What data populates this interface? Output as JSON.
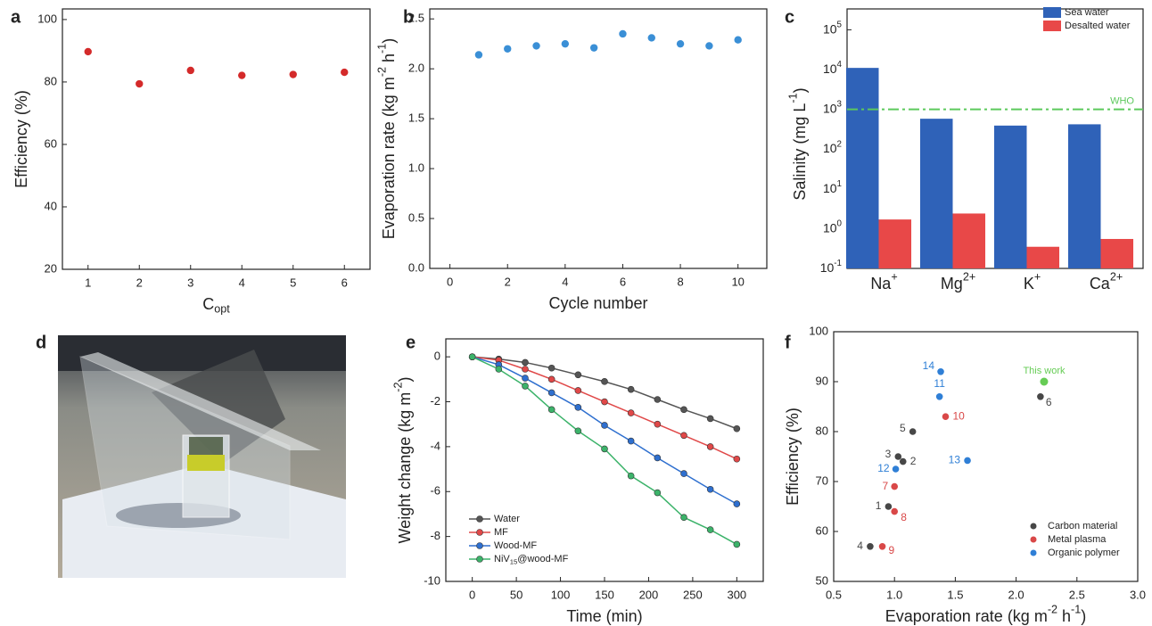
{
  "chart_data": [
    {
      "type": "scatter",
      "panel": "a",
      "xlabel": [
        "C",
        {
          "sub": "opt"
        }
      ],
      "ylabel": "Efficiency (%)",
      "x": [
        1,
        2,
        3,
        4,
        5,
        6
      ],
      "values": [
        89.7,
        79.4,
        83.7,
        82.1,
        82.4,
        83.1
      ],
      "color": "#d42a2a",
      "xlim": [
        0.5,
        6.5
      ],
      "ylim": [
        20,
        103.4
      ],
      "xticks": [
        1,
        2,
        3,
        4,
        5,
        6
      ],
      "yticks": [
        20,
        40,
        60,
        80,
        100
      ]
    },
    {
      "type": "scatter",
      "panel": "b",
      "xlabel": "Cycle number",
      "ylabel": [
        "Evaporation rate (kg m",
        {
          "sup": "-2"
        },
        " h",
        {
          "sup": "-1"
        },
        ")"
      ],
      "x": [
        1,
        2,
        3,
        4,
        5,
        6,
        7,
        8,
        9,
        10
      ],
      "values": [
        2.14,
        2.2,
        2.23,
        2.25,
        2.21,
        2.35,
        2.31,
        2.25,
        2.23,
        2.29
      ],
      "color": "#3a8fd6",
      "xlim": [
        -0.7,
        11
      ],
      "ylim": [
        0,
        2.6
      ],
      "xticks": [
        0,
        2,
        4,
        6,
        8,
        10
      ],
      "yticks": [
        {
          "value": 0,
          "label": "0.0"
        },
        0.5,
        {
          "value": 1,
          "label": "1.0"
        },
        1.5,
        {
          "value": 2,
          "label": "2.0"
        },
        2.5
      ]
    },
    {
      "type": "bar",
      "panel": "c",
      "log_y": true,
      "ylabel": [
        "Salinity (mg L",
        {
          "sup": "-1"
        },
        ")"
      ],
      "categories": [
        [
          "Na",
          {
            "sup": "+"
          }
        ],
        [
          "Mg",
          {
            "sup": "2+"
          }
        ],
        [
          "K",
          {
            "sup": "+"
          }
        ],
        [
          "Ca",
          {
            "sup": "2+"
          }
        ]
      ],
      "series": [
        {
          "name": "Sea water",
          "color": "#2f62b8",
          "values": [
            11000,
            580,
            390,
            420
          ]
        },
        {
          "name": "Desalted water",
          "color": "#e84848",
          "values": [
            1.7,
            2.4,
            0.35,
            0.55
          ]
        }
      ],
      "reference_line": {
        "value": 1000,
        "label": "WHO",
        "color": "#5cc95c"
      },
      "ylim": [
        0.1,
        180000
      ],
      "yticks": [
        {
          "value": 0.1,
          "label": [
            "10",
            {
              "sup": "-1"
            }
          ]
        },
        {
          "value": 1,
          "label": [
            "10",
            {
              "sup": "0"
            }
          ]
        },
        {
          "value": 10,
          "label": [
            "10",
            {
              "sup": "1"
            }
          ]
        },
        {
          "value": 100,
          "label": [
            "10",
            {
              "sup": "2"
            }
          ]
        },
        {
          "value": 1000,
          "label": [
            "10",
            {
              "sup": "3"
            }
          ]
        },
        {
          "value": 10000,
          "label": [
            "10",
            {
              "sup": "4"
            }
          ]
        },
        {
          "value": 100000,
          "label": [
            "10",
            {
              "sup": "5"
            }
          ]
        }
      ],
      "legend": "upper right"
    },
    {
      "type": "image",
      "panel": "d"
    },
    {
      "type": "line",
      "panel": "e",
      "xlabel": "Time (min)",
      "ylabel": [
        "Weight change (kg m",
        {
          "sup": "-2"
        },
        ")"
      ],
      "x": [
        0,
        30,
        60,
        90,
        120,
        150,
        180,
        210,
        240,
        270,
        300
      ],
      "series": [
        {
          "name": "Water",
          "color": "#555555",
          "values": [
            0,
            -0.1,
            -0.25,
            -0.5,
            -0.8,
            -1.1,
            -1.45,
            -1.9,
            -2.35,
            -2.75,
            -3.2
          ]
        },
        {
          "name": "MF",
          "color": "#e04848",
          "values": [
            0,
            -0.15,
            -0.55,
            -1.0,
            -1.5,
            -2.0,
            -2.5,
            -3.0,
            -3.5,
            -4.0,
            -4.55
          ]
        },
        {
          "name": "Wood-MF",
          "color": "#2e6fcf",
          "values": [
            0,
            -0.35,
            -0.95,
            -1.6,
            -2.25,
            -3.05,
            -3.75,
            -4.5,
            -5.2,
            -5.9,
            -6.55
          ]
        },
        {
          "name": [
            "NiV",
            {
              "sub": "15"
            },
            "@wood-MF"
          ],
          "color": "#3cb36a",
          "values": [
            0,
            -0.55,
            -1.3,
            -2.35,
            -3.3,
            -4.1,
            -5.3,
            -6.05,
            -7.15,
            -7.7,
            -8.35
          ]
        }
      ],
      "xlim": [
        -30,
        330
      ],
      "ylim": [
        -10,
        0.8
      ],
      "xticks": [
        0,
        50,
        100,
        150,
        200,
        250,
        300
      ],
      "yticks": [
        -10,
        -8,
        -6,
        -4,
        -2,
        0
      ],
      "legend": "lower left"
    },
    {
      "type": "scatter",
      "panel": "f",
      "xlabel": [
        "Evaporation rate (kg m",
        {
          "sup": "-2"
        },
        " h",
        {
          "sup": "-1"
        },
        ")"
      ],
      "ylabel": "Efficiency (%)",
      "series": [
        {
          "name": "Carbon material",
          "color": "#474747",
          "x": [
            0.95,
            1.07,
            1.03,
            0.8,
            1.15,
            2.2
          ],
          "values": [
            65,
            74,
            75,
            57,
            80,
            87
          ],
          "point_labels": [
            1,
            2,
            3,
            4,
            5,
            6
          ]
        },
        {
          "name": "Metal plasma",
          "color": "#d94848",
          "x": [
            1.0,
            1.0,
            0.9,
            1.42
          ],
          "values": [
            69,
            64,
            57,
            83
          ],
          "point_labels": [
            7,
            8,
            9,
            10
          ]
        },
        {
          "name": "Organic polymer",
          "color": "#2f7fd6",
          "x": [
            1.37,
            1.01,
            1.6,
            1.38
          ],
          "values": [
            87,
            72.5,
            74.2,
            92
          ],
          "point_labels": [
            11,
            12,
            13,
            14
          ]
        }
      ],
      "annotation": {
        "text": "This work",
        "x": 2.23,
        "y": 90,
        "color": "#66cc55"
      },
      "xlim": [
        0.5,
        3.0
      ],
      "ylim": [
        50,
        100
      ],
      "xticks": [
        0.5,
        {
          "value": 1,
          "label": "1.0"
        },
        1.5,
        {
          "value": 2,
          "label": "2.0"
        },
        2.5,
        {
          "value": 3,
          "label": "3.0"
        }
      ],
      "yticks": [
        50,
        60,
        70,
        80,
        90,
        100
      ],
      "legend": "lower right"
    }
  ]
}
